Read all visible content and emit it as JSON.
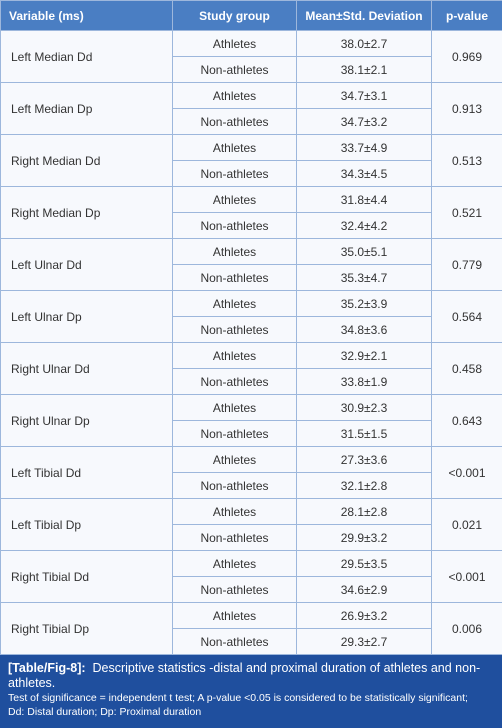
{
  "table": {
    "columns": [
      "Variable (ms)",
      "Study group",
      "Mean±Std. Deviation",
      "p-value"
    ],
    "rows": [
      {
        "variable": "Left Median Dd",
        "groups": [
          {
            "group": "Athletes",
            "mean": "38.0±2.7"
          },
          {
            "group": "Non-athletes",
            "mean": "38.1±2.1"
          }
        ],
        "p": "0.969"
      },
      {
        "variable": "Left Median Dp",
        "groups": [
          {
            "group": "Athletes",
            "mean": "34.7±3.1"
          },
          {
            "group": "Non-athletes",
            "mean": "34.7±3.2"
          }
        ],
        "p": "0.913"
      },
      {
        "variable": "Right Median Dd",
        "groups": [
          {
            "group": "Athletes",
            "mean": "33.7±4.9"
          },
          {
            "group": "Non-athletes",
            "mean": "34.3±4.5"
          }
        ],
        "p": "0.513"
      },
      {
        "variable": "Right Median Dp",
        "groups": [
          {
            "group": "Athletes",
            "mean": "31.8±4.4"
          },
          {
            "group": "Non-athletes",
            "mean": "32.4±4.2"
          }
        ],
        "p": "0.521"
      },
      {
        "variable": "Left Ulnar Dd",
        "groups": [
          {
            "group": "Athletes",
            "mean": "35.0±5.1"
          },
          {
            "group": "Non-athletes",
            "mean": "35.3±4.7"
          }
        ],
        "p": "0.779"
      },
      {
        "variable": "Left Ulnar Dp",
        "groups": [
          {
            "group": "Athletes",
            "mean": "35.2±3.9"
          },
          {
            "group": "Non-athletes",
            "mean": "34.8±3.6"
          }
        ],
        "p": "0.564"
      },
      {
        "variable": "Right Ulnar Dd",
        "groups": [
          {
            "group": "Athletes",
            "mean": "32.9±2.1"
          },
          {
            "group": "Non-athletes",
            "mean": "33.8±1.9"
          }
        ],
        "p": "0.458"
      },
      {
        "variable": "Right Ulnar Dp",
        "groups": [
          {
            "group": "Athletes",
            "mean": "30.9±2.3"
          },
          {
            "group": "Non-athletes",
            "mean": "31.5±1.5"
          }
        ],
        "p": "0.643"
      },
      {
        "variable": "Left Tibial Dd",
        "groups": [
          {
            "group": "Athletes",
            "mean": "27.3±3.6"
          },
          {
            "group": "Non-athletes",
            "mean": "32.1±2.8"
          }
        ],
        "p": "<0.001"
      },
      {
        "variable": "Left Tibial Dp",
        "groups": [
          {
            "group": "Athletes",
            "mean": "28.1±2.8"
          },
          {
            "group": "Non-athletes",
            "mean": "29.9±3.2"
          }
        ],
        "p": "0.021"
      },
      {
        "variable": "Right Tibial Dd",
        "groups": [
          {
            "group": "Athletes",
            "mean": "29.5±3.5"
          },
          {
            "group": "Non-athletes",
            "mean": "34.6±2.9"
          }
        ],
        "p": "<0.001"
      },
      {
        "variable": "Right Tibial Dp",
        "groups": [
          {
            "group": "Athletes",
            "mean": "26.9±3.2"
          },
          {
            "group": "Non-athletes",
            "mean": "29.3±2.7"
          }
        ],
        "p": "0.006"
      }
    ]
  },
  "caption": {
    "label": "[Table/Fig-8]:",
    "text": "Descriptive statistics -distal and proximal duration of athletes and non-athletes.",
    "notes": [
      "Test of significance = independent t test; A p-value <0.05 is considered to be statistically significant;",
      "Dd: Distal duration; Dp: Proximal duration"
    ]
  }
}
